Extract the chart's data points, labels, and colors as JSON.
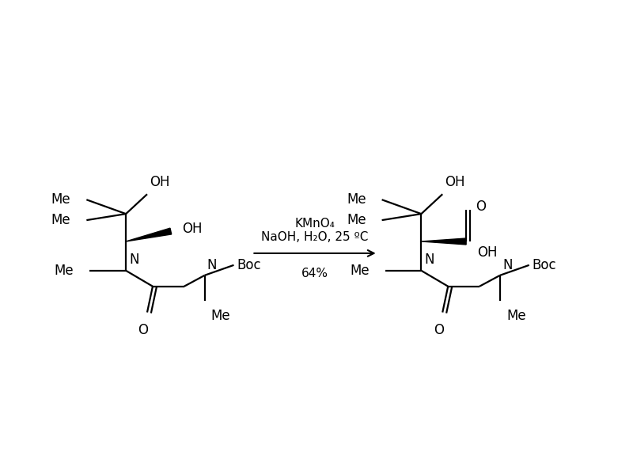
{
  "background_color": "#ffffff",
  "figure_width": 8.0,
  "figure_height": 6.0,
  "dpi": 100,
  "reagent_line1": "KMnO₄",
  "reagent_line2": "NaOH, H₂O, 25 ºC",
  "yield_text": "64%",
  "font_size_struct": 12,
  "font_size_reagent": 11,
  "line_width": 1.6,
  "text_color": "#000000"
}
